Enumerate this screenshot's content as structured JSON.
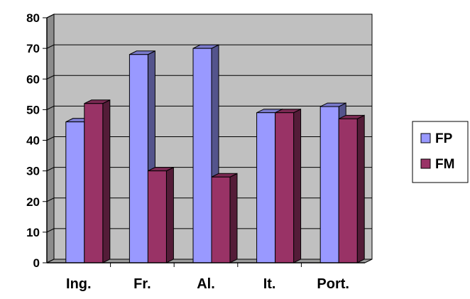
{
  "chart_data": {
    "type": "bar",
    "style": "3d-clustered-column",
    "categories": [
      "Ing.",
      "Fr.",
      "Al.",
      "It.",
      "Port."
    ],
    "series": [
      {
        "name": "FP",
        "values": [
          46,
          68,
          70,
          49,
          51
        ],
        "color": "#9999FF"
      },
      {
        "name": "FM",
        "values": [
          52,
          30,
          28,
          49,
          47
        ],
        "color": "#993366"
      }
    ],
    "ylim": [
      0,
      80
    ],
    "yticks": [
      "0",
      "10",
      "20",
      "30",
      "40",
      "50",
      "60",
      "70",
      "80"
    ],
    "grid": true,
    "legend": "right",
    "wall_color": "#C0C0C0",
    "title": "",
    "xlabel": "",
    "ylabel": ""
  }
}
